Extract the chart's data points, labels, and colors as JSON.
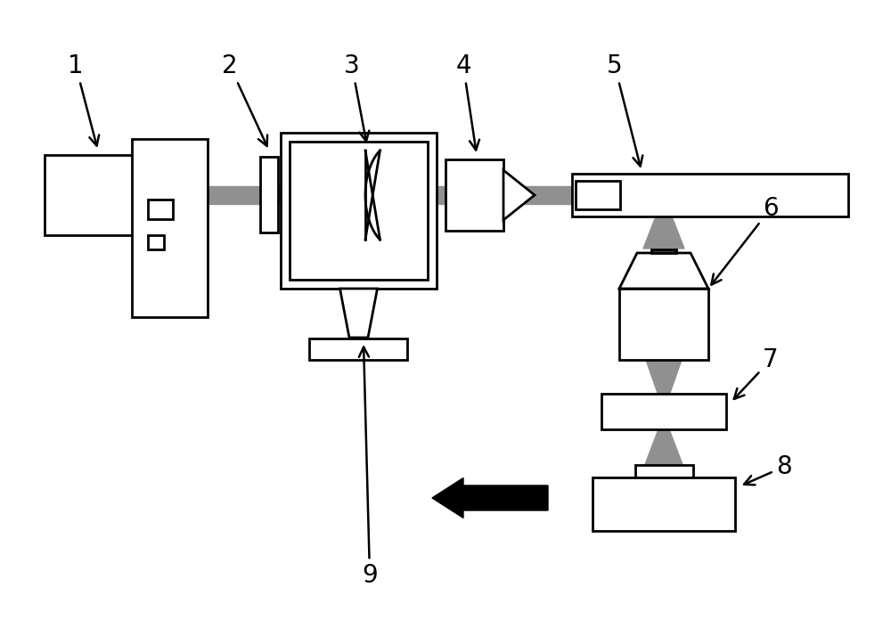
{
  "bg_color": "#ffffff",
  "line_color": "#000000",
  "beam_color": "#909090",
  "lw": 2.0,
  "fs": 20,
  "fig_w": 10.0,
  "fig_h": 7.14,
  "dpi": 100
}
